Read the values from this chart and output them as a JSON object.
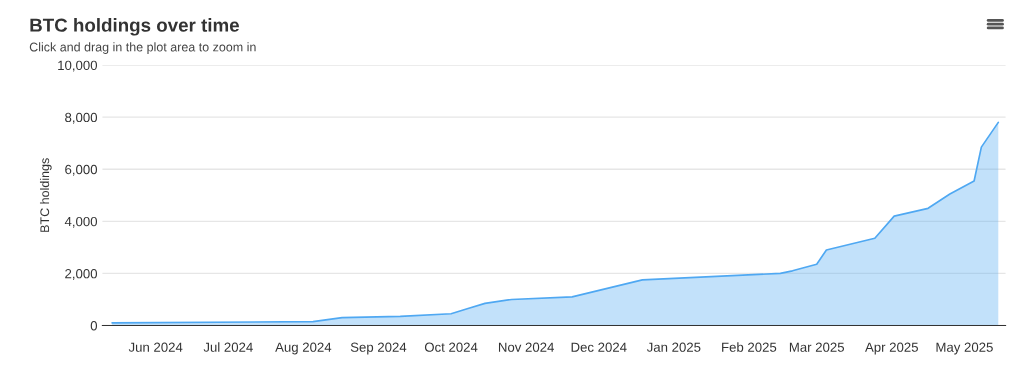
{
  "chart_data": {
    "type": "area",
    "title": "BTC holdings over time",
    "subtitle": "Click and drag in the plot area to zoom in",
    "ylabel": "BTC holdings",
    "x": [
      "2024-05-14",
      "2024-08-05",
      "2024-08-17",
      "2024-09-10",
      "2024-10-01",
      "2024-10-08",
      "2024-10-15",
      "2024-10-26",
      "2024-11-20",
      "2024-12-19",
      "2025-02-14",
      "2025-02-19",
      "2025-03-01",
      "2025-03-05",
      "2025-03-25",
      "2025-04-02",
      "2025-04-16",
      "2025-04-25",
      "2025-05-05",
      "2025-05-08",
      "2025-05-15"
    ],
    "series": [
      {
        "color": "#4fa8f2",
        "values": [
          100,
          150,
          300,
          350,
          450,
          650,
          850,
          1000,
          1100,
          1750,
          2000,
          2100,
          2350,
          2900,
          3350,
          4200,
          4500,
          5050,
          5550,
          6850,
          7800
        ]
      }
    ],
    "xlim": [
      "2024-05-10",
      "2025-05-18"
    ],
    "xticks": [
      {
        "value": "2024-06-01",
        "label": "Jun 2024"
      },
      {
        "value": "2024-07-01",
        "label": "Jul 2024"
      },
      {
        "value": "2024-08-01",
        "label": "Aug 2024"
      },
      {
        "value": "2024-09-01",
        "label": "Sep 2024"
      },
      {
        "value": "2024-10-01",
        "label": "Oct 2024"
      },
      {
        "value": "2024-11-01",
        "label": "Nov 2024"
      },
      {
        "value": "2024-12-01",
        "label": "Dec 2024"
      },
      {
        "value": "2025-01-01",
        "label": "Jan 2025"
      },
      {
        "value": "2025-02-01",
        "label": "Feb 2025"
      },
      {
        "value": "2025-03-01",
        "label": "Mar 2025"
      },
      {
        "value": "2025-04-01",
        "label": "Apr 2025"
      },
      {
        "value": "2025-05-01",
        "label": "May 2025"
      }
    ],
    "ylim": [
      0,
      10000
    ],
    "yticks": [
      0,
      {
        "value": 2000,
        "label": "2,000"
      },
      {
        "value": 4000,
        "label": "4,000"
      },
      {
        "value": 6000,
        "label": "6,000"
      },
      {
        "value": 8000,
        "label": "8,000"
      },
      {
        "value": 10000,
        "label": "10,000"
      }
    ],
    "grid": "y",
    "marker": "none"
  }
}
